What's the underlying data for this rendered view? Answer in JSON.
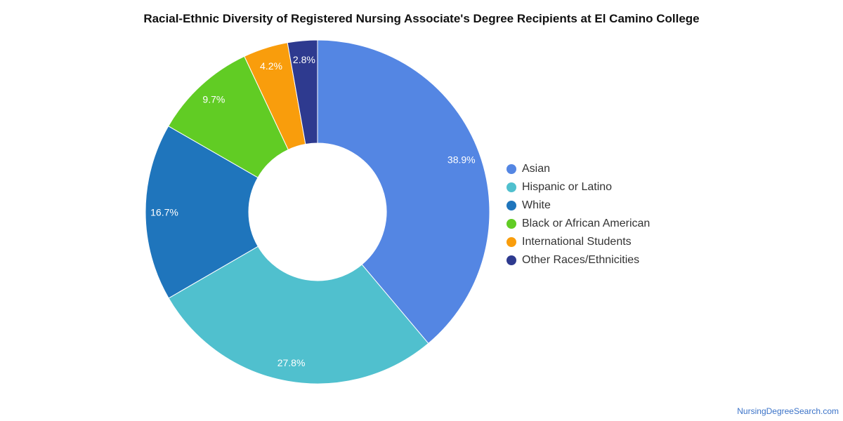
{
  "chart_data": {
    "type": "pie",
    "title": "Racial-Ethnic Diversity of Registered Nursing Associate's Degree Recipients at El Camino College",
    "value_unit": "percent",
    "donut": true,
    "legend_position": "right",
    "slices": [
      {
        "label": "Asian",
        "value": 38.9,
        "display": "38.9%",
        "color": "#5486e3"
      },
      {
        "label": "Hispanic or Latino",
        "value": 27.8,
        "display": "27.8%",
        "color": "#50c0ce"
      },
      {
        "label": "White",
        "value": 16.7,
        "display": "16.7%",
        "color": "#1f75bc"
      },
      {
        "label": "Black or African American",
        "value": 9.7,
        "display": "9.7%",
        "color": "#61cc24"
      },
      {
        "label": "International Students",
        "value": 4.2,
        "display": "4.2%",
        "color": "#f99d0c"
      },
      {
        "label": "Other Races/Ethnicities",
        "value": 2.8,
        "display": "2.8%",
        "color": "#2e3a8f"
      }
    ]
  },
  "footer": {
    "source": "NursingDegreeSearch.com"
  }
}
